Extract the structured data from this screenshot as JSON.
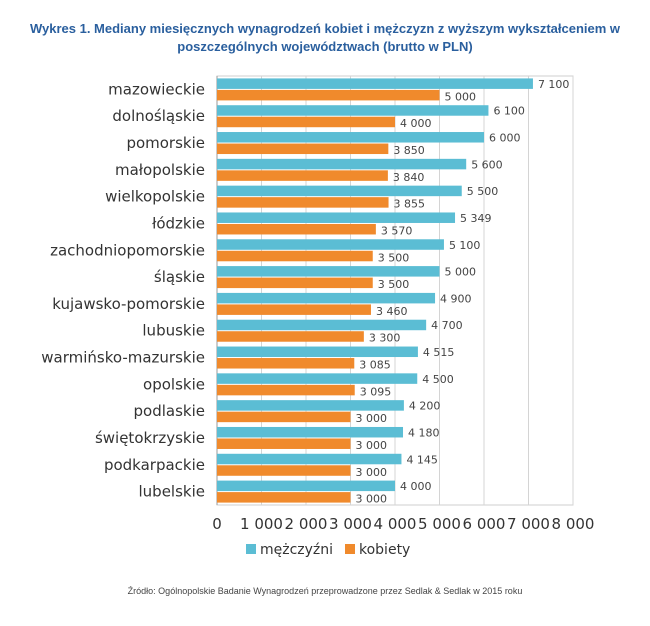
{
  "chart_data": {
    "type": "bar",
    "orientation": "horizontal",
    "title_line1": "Wykres 1. Mediany miesięcznych wynagrodzeń kobiet i mężczyzn z wyższym wykształceniem w",
    "title_line2": "poszczególnych województwach (brutto w PLN)",
    "categories": [
      "mazowieckie",
      "dolnośląskie",
      "pomorskie",
      "małopolskie",
      "wielkopolskie",
      "łódzkie",
      "zachodniopomorskie",
      "śląskie",
      "kujawsko-pomorskie",
      "lubuskie",
      "warmińsko-mazurskie",
      "opolskie",
      "podlaskie",
      "świętokrzyskie",
      "podkarpackie",
      "lubelskie"
    ],
    "series": [
      {
        "name": "mężczyźni",
        "color": "#5bbdd4",
        "values": [
          7100,
          6100,
          6000,
          5600,
          5500,
          5349,
          5100,
          5000,
          4900,
          4700,
          4515,
          4500,
          4200,
          4180,
          4145,
          4000
        ],
        "labels": [
          "7 100",
          "6 100",
          "6 000",
          "5 600",
          "5 500",
          "5 349",
          "5 100",
          "5 000",
          "4 900",
          "4 700",
          "4 515",
          "4 500",
          "4 200",
          "4 180",
          "4 145",
          "4 000"
        ]
      },
      {
        "name": "kobiety",
        "color": "#f08a2c",
        "values": [
          5000,
          4000,
          3850,
          3840,
          3855,
          3570,
          3500,
          3500,
          3460,
          3300,
          3085,
          3095,
          3000,
          3000,
          3000,
          3000
        ],
        "labels": [
          "5 000",
          "4 000",
          "3 850",
          "3 840",
          "3 855",
          "3 570",
          "3 500",
          "3 500",
          "3 460",
          "3 300",
          "3 085",
          "3 095",
          "3 000",
          "3 000",
          "3 000",
          "3 000"
        ]
      }
    ],
    "xlim": [
      0,
      8000
    ],
    "xticks": [
      0,
      1000,
      2000,
      3000,
      4000,
      5000,
      6000,
      7000,
      8000
    ],
    "xtick_labels": [
      "0",
      "1 000",
      "2 000",
      "3 000",
      "4 000",
      "5 000",
      "6 000",
      "7 000",
      "8 000"
    ],
    "grid": true,
    "legend_position": "bottom"
  },
  "source": "Źródło: Ogólnopolskie Badanie Wynagrodzeń przeprowadzone przez Sedlak & Sedlak w 2015 roku"
}
